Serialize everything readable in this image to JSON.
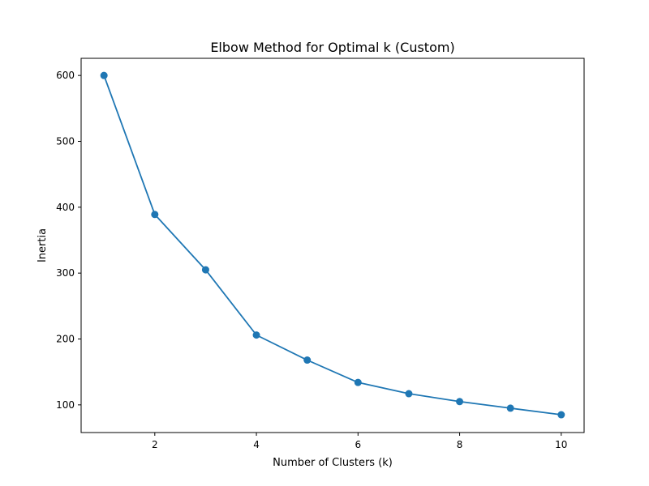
{
  "chart_data": {
    "type": "line",
    "title": "Elbow Method for Optimal k (Custom)",
    "xlabel": "Number of Clusters (k)",
    "ylabel": "Inertia",
    "xlim": [
      0.55,
      10.45
    ],
    "ylim": [
      58,
      626
    ],
    "xticks": [
      2,
      4,
      6,
      8,
      10
    ],
    "yticks": [
      100,
      200,
      300,
      400,
      500,
      600
    ],
    "grid": false,
    "series": [
      {
        "color": "#1f77b4",
        "marker": "circle",
        "x": [
          1,
          2,
          3,
          4,
          5,
          6,
          7,
          8,
          9,
          10
        ],
        "y": [
          600,
          389,
          305,
          206,
          168,
          134,
          117,
          105,
          95,
          85
        ]
      }
    ]
  }
}
